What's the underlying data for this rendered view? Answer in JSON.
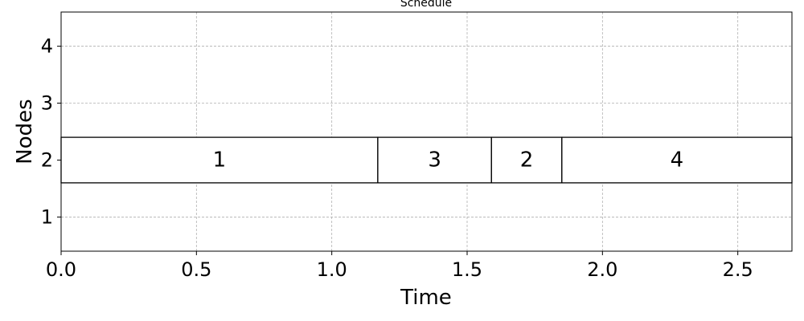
{
  "chart_data": {
    "type": "gantt",
    "title": "Schedule",
    "xlabel": "Time",
    "ylabel": "Nodes",
    "xlim": [
      0,
      2.7
    ],
    "ylim": [
      0.4,
      4.6
    ],
    "x_ticks": [
      "0.0",
      "0.5",
      "1.0",
      "1.5",
      "2.0",
      "2.5"
    ],
    "x_tick_values": [
      0,
      0.5,
      1.0,
      1.5,
      2.0,
      2.5
    ],
    "y_ticks": [
      "1",
      "2",
      "3",
      "4"
    ],
    "y_tick_values": [
      1,
      2,
      3,
      4
    ],
    "grid": true,
    "bar_height": 0.8,
    "tasks": [
      {
        "label": "1",
        "node": 2,
        "start": 0.0,
        "end": 1.17
      },
      {
        "label": "3",
        "node": 2,
        "start": 1.17,
        "end": 1.59
      },
      {
        "label": "2",
        "node": 2,
        "start": 1.59,
        "end": 1.85
      },
      {
        "label": "4",
        "node": 2,
        "start": 1.85,
        "end": 2.7
      }
    ],
    "colors": {
      "bar_fill": "#ffffff",
      "bar_edge": "#000000",
      "grid": "#b0b0b0"
    }
  }
}
